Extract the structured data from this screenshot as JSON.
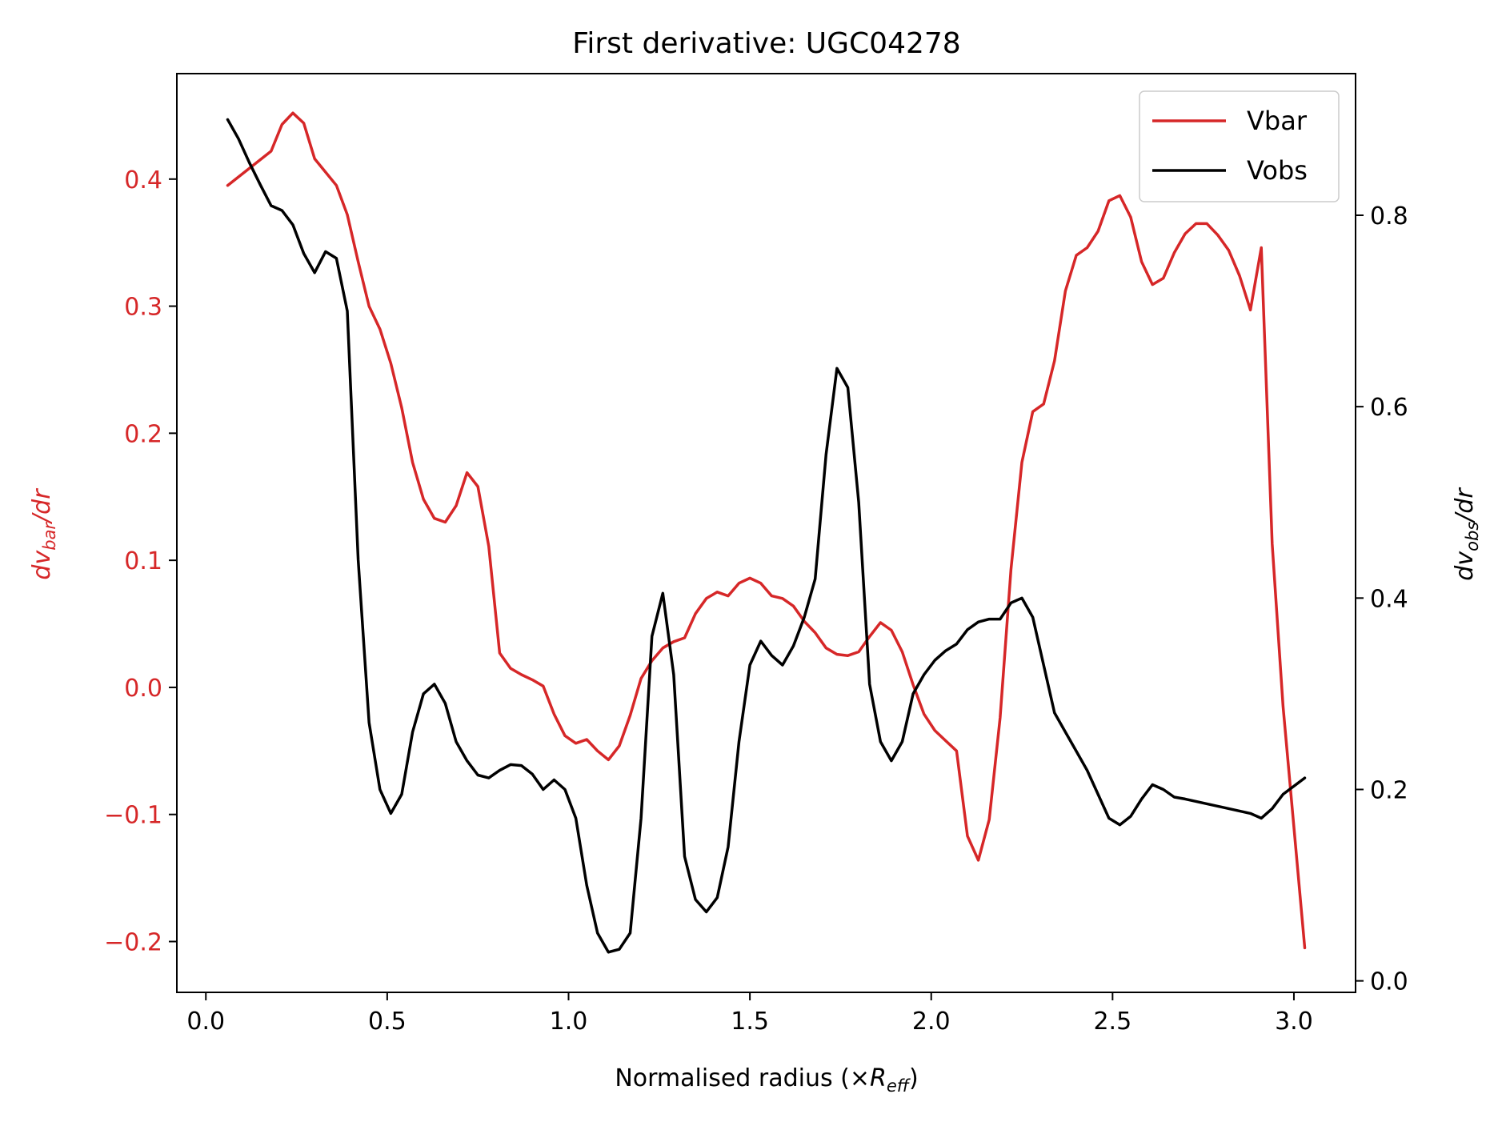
{
  "chart_data": {
    "type": "line",
    "title": "First derivative: UGC04278",
    "xlabel": "Normalised radius (×R_eff)",
    "xlabel_main": "Normalised radius (×",
    "xlabel_sym": "R",
    "xlabel_sub": "eff",
    "xlabel_close": ")",
    "ylabel_left": "dv_bar/dr",
    "ylabel_left_main": "dv",
    "ylabel_left_sub": "bar",
    "ylabel_left_tail": "/dr",
    "ylabel_right": "dv_obs/dr",
    "ylabel_right_main": "dv",
    "ylabel_right_sub": "obs",
    "ylabel_right_tail": "/dr",
    "xlim": [
      -0.08,
      3.17
    ],
    "ylim_left": [
      -0.24,
      0.483
    ],
    "ylim_right": [
      -0.012,
      0.948
    ],
    "x_ticks": [
      0.0,
      0.5,
      1.0,
      1.5,
      2.0,
      2.5,
      3.0
    ],
    "x_tick_labels": [
      "0.0",
      "0.5",
      "1.0",
      "1.5",
      "2.0",
      "2.5",
      "3.0"
    ],
    "y_left_ticks": [
      -0.2,
      -0.1,
      0.0,
      0.1,
      0.2,
      0.3,
      0.4
    ],
    "y_left_tick_labels": [
      "−0.2",
      "−0.1",
      "0.0",
      "0.1",
      "0.2",
      "0.3",
      "0.4"
    ],
    "y_right_ticks": [
      0.0,
      0.2,
      0.4,
      0.6,
      0.8
    ],
    "y_right_tick_labels": [
      "0.0",
      "0.2",
      "0.4",
      "0.6",
      "0.8"
    ],
    "legend_position": "top-right",
    "grid": false,
    "colors": {
      "vbar": "#d62728",
      "vobs": "#000000",
      "axis": "#000000"
    },
    "series": [
      {
        "name": "Vbar",
        "axis": "left",
        "color": "#d62728",
        "x": [
          0.06,
          0.18,
          0.21,
          0.24,
          0.27,
          0.3,
          0.36,
          0.39,
          0.42,
          0.45,
          0.48,
          0.51,
          0.54,
          0.57,
          0.6,
          0.63,
          0.66,
          0.69,
          0.72,
          0.75,
          0.78,
          0.81,
          0.84,
          0.87,
          0.9,
          0.93,
          0.96,
          0.99,
          1.02,
          1.05,
          1.08,
          1.11,
          1.14,
          1.17,
          1.2,
          1.23,
          1.26,
          1.29,
          1.32,
          1.35,
          1.38,
          1.41,
          1.44,
          1.47,
          1.5,
          1.53,
          1.56,
          1.59,
          1.62,
          1.65,
          1.68,
          1.71,
          1.74,
          1.77,
          1.8,
          1.83,
          1.86,
          1.89,
          1.92,
          1.95,
          1.98,
          2.01,
          2.04,
          2.07,
          2.1,
          2.13,
          2.16,
          2.19,
          2.22,
          2.25,
          2.28,
          2.31,
          2.34,
          2.37,
          2.4,
          2.43,
          2.46,
          2.49,
          2.52,
          2.55,
          2.58,
          2.61,
          2.64,
          2.67,
          2.7,
          2.73,
          2.76,
          2.79,
          2.82,
          2.85,
          2.88,
          2.91,
          2.94,
          2.97,
          3.03
        ],
        "values": [
          0.395,
          0.422,
          0.443,
          0.452,
          0.444,
          0.416,
          0.395,
          0.372,
          0.335,
          0.3,
          0.282,
          0.255,
          0.22,
          0.177,
          0.148,
          0.133,
          0.13,
          0.143,
          0.169,
          0.158,
          0.111,
          0.027,
          0.015,
          0.01,
          0.006,
          0.001,
          -0.021,
          -0.038,
          -0.044,
          -0.041,
          -0.05,
          -0.057,
          -0.046,
          -0.022,
          0.007,
          0.021,
          0.031,
          0.036,
          0.039,
          0.058,
          0.07,
          0.075,
          0.072,
          0.082,
          0.086,
          0.082,
          0.072,
          0.07,
          0.064,
          0.052,
          0.043,
          0.031,
          0.026,
          0.025,
          0.028,
          0.04,
          0.051,
          0.045,
          0.028,
          0.002,
          -0.021,
          -0.034,
          -0.042,
          -0.05,
          -0.117,
          -0.136,
          -0.104,
          -0.024,
          0.093,
          0.177,
          0.217,
          0.223,
          0.257,
          0.312,
          0.34,
          0.346,
          0.359,
          0.383,
          0.387,
          0.37,
          0.335,
          0.317,
          0.322,
          0.342,
          0.357,
          0.365,
          0.365,
          0.356,
          0.344,
          0.324,
          0.297,
          0.346,
          0.113,
          -0.015,
          -0.205
        ]
      },
      {
        "name": "Vobs",
        "axis": "right",
        "color": "#000000",
        "x": [
          0.06,
          0.09,
          0.12,
          0.15,
          0.18,
          0.21,
          0.24,
          0.27,
          0.3,
          0.33,
          0.36,
          0.39,
          0.42,
          0.45,
          0.48,
          0.51,
          0.54,
          0.57,
          0.6,
          0.63,
          0.66,
          0.69,
          0.72,
          0.75,
          0.78,
          0.81,
          0.84,
          0.87,
          0.9,
          0.93,
          0.96,
          0.99,
          1.02,
          1.05,
          1.08,
          1.11,
          1.14,
          1.17,
          1.2,
          1.23,
          1.26,
          1.29,
          1.32,
          1.35,
          1.38,
          1.41,
          1.44,
          1.47,
          1.5,
          1.53,
          1.56,
          1.59,
          1.62,
          1.65,
          1.68,
          1.71,
          1.74,
          1.77,
          1.8,
          1.83,
          1.86,
          1.89,
          1.92,
          1.95,
          1.98,
          2.01,
          2.04,
          2.07,
          2.1,
          2.13,
          2.16,
          2.19,
          2.22,
          2.25,
          2.28,
          2.31,
          2.34,
          2.37,
          2.4,
          2.43,
          2.46,
          2.49,
          2.52,
          2.55,
          2.58,
          2.61,
          2.64,
          2.67,
          2.7,
          2.88,
          2.91,
          2.94,
          2.97,
          3.03
        ],
        "values": [
          0.9,
          0.88,
          0.855,
          0.832,
          0.81,
          0.805,
          0.79,
          0.76,
          0.74,
          0.762,
          0.755,
          0.7,
          0.44,
          0.27,
          0.2,
          0.175,
          0.195,
          0.26,
          0.3,
          0.31,
          0.29,
          0.25,
          0.23,
          0.215,
          0.212,
          0.22,
          0.226,
          0.225,
          0.216,
          0.2,
          0.21,
          0.2,
          0.17,
          0.1,
          0.05,
          0.03,
          0.033,
          0.05,
          0.17,
          0.36,
          0.405,
          0.32,
          0.13,
          0.085,
          0.072,
          0.087,
          0.14,
          0.25,
          0.33,
          0.355,
          0.34,
          0.33,
          0.35,
          0.38,
          0.42,
          0.55,
          0.64,
          0.62,
          0.5,
          0.31,
          0.25,
          0.23,
          0.25,
          0.3,
          0.32,
          0.335,
          0.345,
          0.352,
          0.367,
          0.375,
          0.378,
          0.378,
          0.395,
          0.4,
          0.38,
          0.33,
          0.28,
          0.26,
          0.24,
          0.22,
          0.195,
          0.17,
          0.163,
          0.172,
          0.19,
          0.205,
          0.2,
          0.192,
          0.19,
          0.175,
          0.17,
          0.18,
          0.195,
          0.212
        ]
      }
    ]
  }
}
